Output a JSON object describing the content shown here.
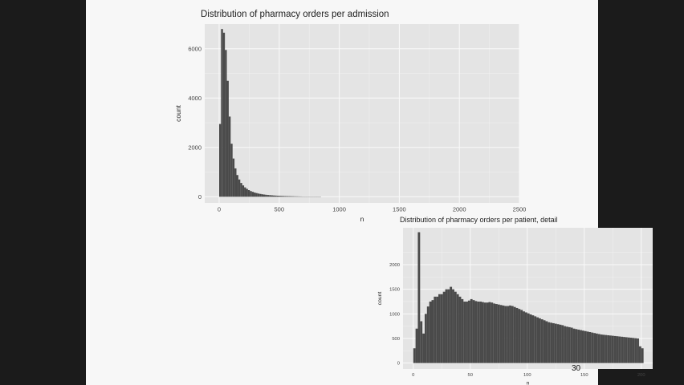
{
  "slide": {
    "page_number": "30",
    "background": "#f7f7f7"
  },
  "colors": {
    "panel": "#e4e4e4",
    "grid": "#f2f2f2",
    "bar": "#4a4a4a"
  },
  "chart_data": [
    {
      "type": "bar",
      "title": "Distribution of pharmacy orders per admission",
      "xlabel": "n",
      "ylabel": "count",
      "xlim": [
        -120,
        2500
      ],
      "ylim": [
        -250,
        7000
      ],
      "x_ticks": [
        0,
        500,
        1000,
        1500,
        2000,
        2500
      ],
      "x_tick_labels": [
        "0",
        "500",
        "1000",
        "1500",
        "2000",
        "2500"
      ],
      "y_ticks": [
        0,
        2000,
        4000,
        6000
      ],
      "y_tick_labels": [
        "0",
        "2000",
        "4000",
        "6000"
      ],
      "grid": true,
      "bin_width": 16,
      "bin_start": 0,
      "values": [
        2950,
        6800,
        6650,
        5950,
        4700,
        3250,
        2150,
        1550,
        1150,
        880,
        700,
        560,
        460,
        380,
        320,
        270,
        230,
        200,
        170,
        150,
        130,
        115,
        100,
        90,
        80,
        72,
        65,
        58,
        52,
        47,
        42,
        38,
        34,
        31,
        28,
        26,
        24,
        22,
        20,
        18,
        16,
        14,
        12,
        10,
        9,
        8,
        7,
        6,
        5,
        4,
        3,
        2,
        1
      ]
    },
    {
      "type": "bar",
      "title": "Distribution of pharmacy orders per patient, detail",
      "xlabel": "n",
      "ylabel": "count",
      "xlim": [
        -9,
        210
      ],
      "ylim": [
        -120,
        2750
      ],
      "x_ticks": [
        0,
        50,
        100,
        150,
        200
      ],
      "x_tick_labels": [
        "0",
        "50",
        "100",
        "150",
        "200"
      ],
      "y_ticks": [
        0,
        500,
        1000,
        1500,
        2000
      ],
      "y_tick_labels": [
        "0",
        "500",
        "1000",
        "1500",
        "2000"
      ],
      "grid": true,
      "bin_width": 2,
      "bin_start": 0,
      "values": [
        300,
        700,
        2660,
        850,
        600,
        1000,
        1150,
        1250,
        1280,
        1350,
        1350,
        1400,
        1400,
        1450,
        1500,
        1500,
        1550,
        1500,
        1450,
        1400,
        1350,
        1300,
        1250,
        1250,
        1270,
        1300,
        1280,
        1260,
        1250,
        1250,
        1240,
        1230,
        1230,
        1240,
        1230,
        1210,
        1200,
        1190,
        1180,
        1170,
        1160,
        1160,
        1170,
        1160,
        1140,
        1120,
        1100,
        1080,
        1050,
        1030,
        1010,
        990,
        970,
        950,
        930,
        910,
        890,
        870,
        850,
        830,
        820,
        810,
        800,
        790,
        780,
        770,
        750,
        740,
        730,
        720,
        700,
        690,
        680,
        670,
        660,
        650,
        640,
        630,
        620,
        610,
        600,
        590,
        580,
        575,
        570,
        565,
        560,
        555,
        550,
        545,
        540,
        535,
        530,
        525,
        520,
        515,
        510,
        505,
        500,
        340,
        300
      ]
    }
  ]
}
